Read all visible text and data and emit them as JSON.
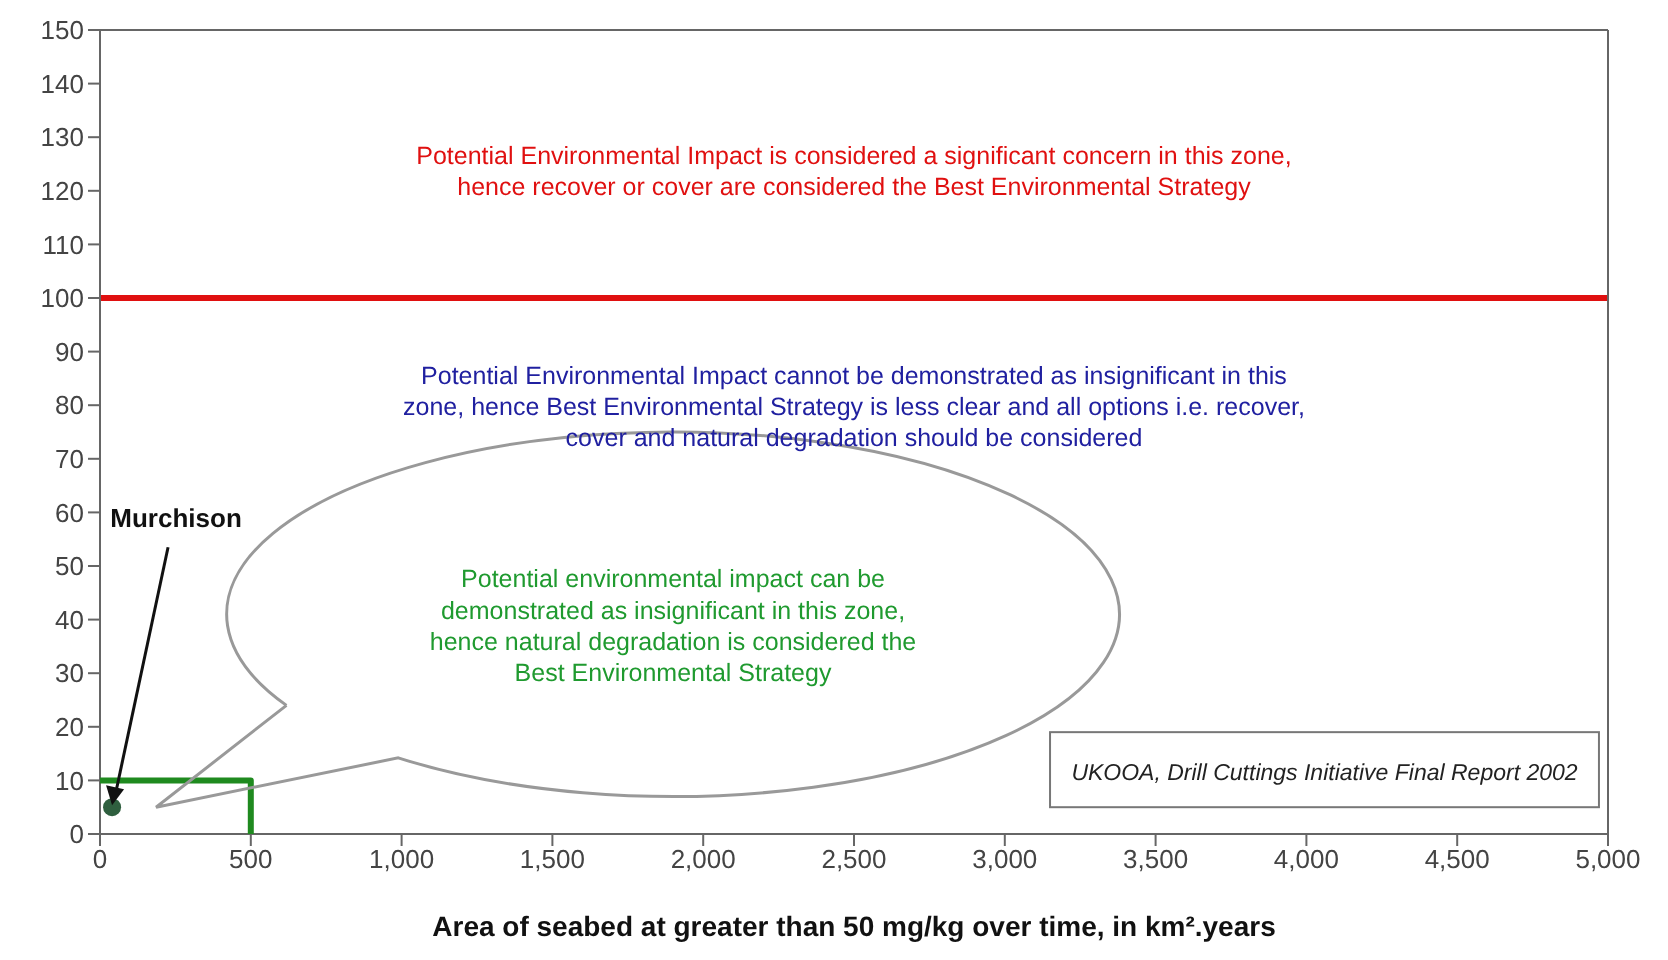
{
  "chart_data": {
    "type": "scatter",
    "xlabel": "Area of seabed at greater than 50 mg/kg over time, in km².years",
    "series": [
      {
        "x": [
          40
        ],
        "values": [
          5
        ],
        "color": "#2f5f3f",
        "marker": "circle"
      },
      {
        "type": "line",
        "x": [
          0,
          500,
          500
        ],
        "values": [
          10,
          10,
          0
        ],
        "color": "#1f8a1f",
        "marker": "none"
      }
    ],
    "xlim": [
      0,
      5000
    ],
    "xticks": [
      0,
      500,
      {
        "value": 1000,
        "label": "1,000"
      },
      {
        "value": 1500,
        "label": "1,500"
      },
      {
        "value": 2000,
        "label": "2,000"
      },
      {
        "value": 2500,
        "label": "2,500"
      },
      {
        "value": 3000,
        "label": "3,000"
      },
      {
        "value": 3500,
        "label": "3,500"
      },
      {
        "value": 4000,
        "label": "4,000"
      },
      {
        "value": 4500,
        "label": "4,500"
      },
      {
        "value": 5000,
        "label": "5,000"
      }
    ],
    "ylim": [
      0,
      150
    ],
    "yticks": [
      0,
      10,
      20,
      30,
      40,
      50,
      60,
      70,
      80,
      90,
      100,
      110,
      120,
      130,
      140,
      150
    ],
    "ref_lines": [
      {
        "axis": "y",
        "value": 100,
        "color": "#e01010"
      }
    ],
    "annotations": [
      "Potential Environmental Impact is considered a significant concern in this zone,\nhence recover or cover are considered the Best Environmental Strategy",
      "Potential Environmental Impact cannot be demonstrated as insignificant in this\nzone, hence Best Environmental Strategy is less clear and all options i.e. recover,\ncover and natural degradation should be considered",
      "Potential environmental impact can be\ndemonstrated as insignificant in this zone,\nhence natural degradation is considered the\nBest Environmental Strategy",
      {
        "text": "Murchison",
        "x": 40,
        "y": 5
      },
      "UKOOA, Drill Cuttings Initiative Final Report 2002"
    ]
  }
}
